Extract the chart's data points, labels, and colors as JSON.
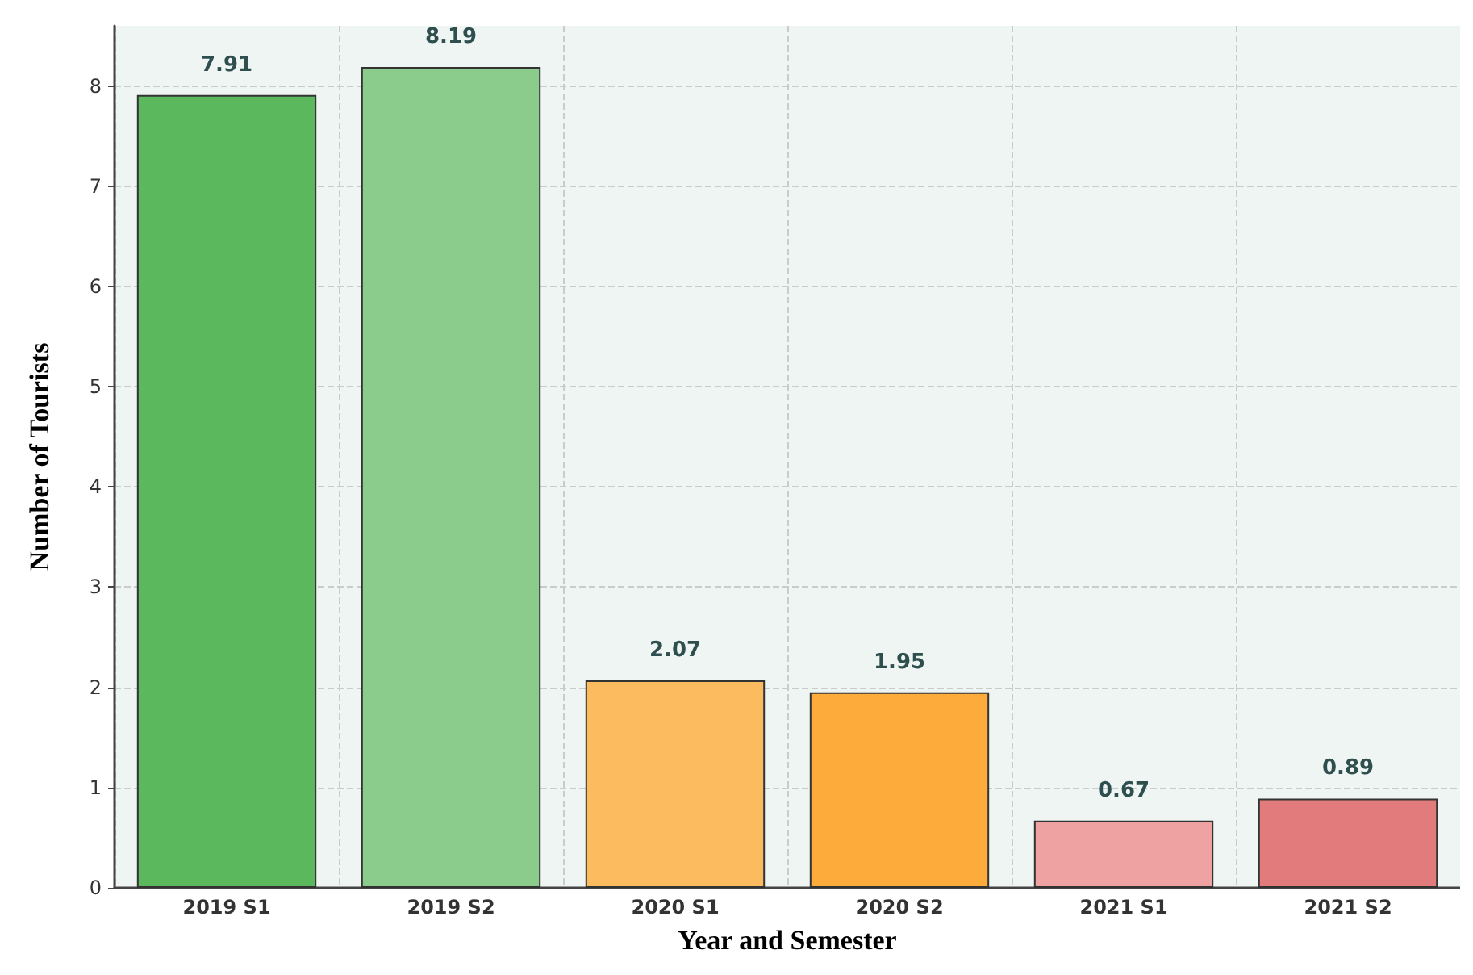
{
  "chart_data": {
    "type": "bar",
    "xlabel": "Year and Semester",
    "ylabel": "Number of Tourists",
    "categories": [
      "2019 S1",
      "2019 S2",
      "2020 S1",
      "2020 S2",
      "2021 S1",
      "2021 S2"
    ],
    "values": [
      7.91,
      8.19,
      2.07,
      1.95,
      0.67,
      0.89
    ],
    "colors": [
      "#5cb85c",
      "#8bcb8b",
      "#fdbb5f",
      "#fdab3a",
      "#eea3a2",
      "#e27c7c"
    ],
    "ylim": [
      0,
      8.6
    ],
    "yticks": [
      0,
      1,
      2,
      3,
      4,
      5,
      6,
      7,
      8
    ],
    "grid": true,
    "data_labels": true
  }
}
